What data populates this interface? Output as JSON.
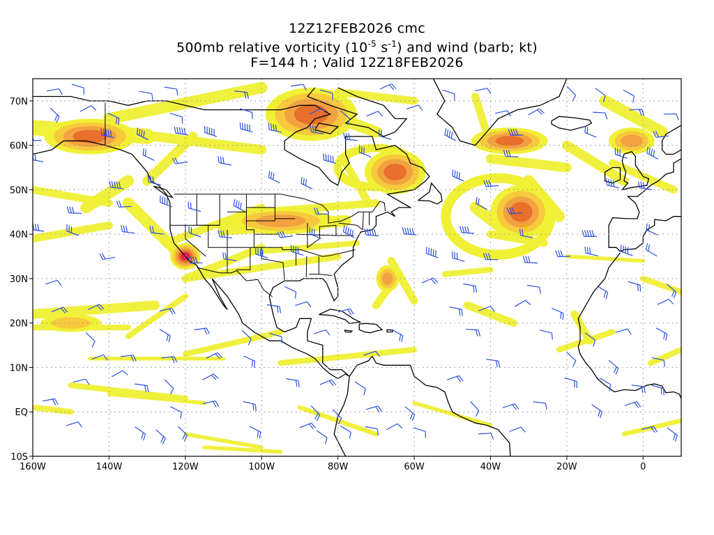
{
  "header": {
    "line1": "12Z12FEB2026 cmc",
    "line2_pre": "500mb relative vorticity (10",
    "line2_sup1": "-5",
    "line2_mid": " s",
    "line2_sup2": "-1",
    "line2_post": ") and wind (barb; kt)",
    "line3": "F=144 h ; Valid 12Z18FEB2026"
  },
  "map": {
    "projection": "lat-lon",
    "lon_range": [
      -160,
      10
    ],
    "lat_range": [
      -10,
      75
    ],
    "lat_labels": [
      {
        "lat": 70,
        "text": "70N"
      },
      {
        "lat": 60,
        "text": "60N"
      },
      {
        "lat": 50,
        "text": "50N"
      },
      {
        "lat": 40,
        "text": "40N"
      },
      {
        "lat": 30,
        "text": "30N"
      },
      {
        "lat": 20,
        "text": "20N"
      },
      {
        "lat": 10,
        "text": "10N"
      },
      {
        "lat": 0,
        "text": "EQ"
      },
      {
        "lat": -10,
        "text": "10S"
      }
    ],
    "lon_labels": [
      {
        "lon": -160,
        "text": "160W"
      },
      {
        "lon": -140,
        "text": "140W"
      },
      {
        "lon": -120,
        "text": "120W"
      },
      {
        "lon": -100,
        "text": "100W"
      },
      {
        "lon": -80,
        "text": "80W"
      },
      {
        "lon": -60,
        "text": "60W"
      },
      {
        "lon": -40,
        "text": "40W"
      },
      {
        "lon": -20,
        "text": "20W"
      },
      {
        "lon": 0,
        "text": "0"
      }
    ],
    "colors": {
      "weak": "#f0f035",
      "moderate": "#f7c93c",
      "strong": "#f2a241",
      "very_strong": "#e8702a",
      "extreme": "#e02050",
      "barb": "#2a4fe0",
      "coast": "#000000",
      "grid": "#999999"
    },
    "vorticity_features": [
      {
        "lon": -145,
        "lat": 62,
        "rx": 12,
        "ry": 4,
        "level": 4
      },
      {
        "lon": -87,
        "lat": 67,
        "rx": 12,
        "ry": 6,
        "level": 4
      },
      {
        "lon": -65,
        "lat": 54,
        "rx": 8,
        "ry": 5,
        "level": 4
      },
      {
        "lon": -32,
        "lat": 45,
        "rx": 8,
        "ry": 6,
        "level": 4
      },
      {
        "lon": -35,
        "lat": 61,
        "rx": 10,
        "ry": 3,
        "level": 4
      },
      {
        "lon": -120,
        "lat": 35,
        "rx": 4,
        "ry": 3,
        "level": 5
      },
      {
        "lon": -3,
        "lat": 61,
        "rx": 6,
        "ry": 3,
        "level": 3
      },
      {
        "lon": -67,
        "lat": 30,
        "rx": 3,
        "ry": 3,
        "level": 3
      },
      {
        "lon": -150,
        "lat": 20,
        "rx": 8,
        "ry": 2,
        "level": 2
      },
      {
        "lon": -95,
        "lat": 43,
        "rx": 14,
        "ry": 3,
        "level": 3
      }
    ]
  }
}
